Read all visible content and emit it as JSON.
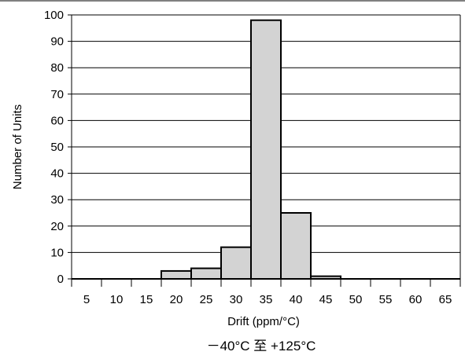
{
  "chart_data": {
    "type": "bar",
    "categories": [
      "5",
      "10",
      "15",
      "20",
      "25",
      "30",
      "35",
      "40",
      "45",
      "50",
      "55",
      "60",
      "65"
    ],
    "values": [
      0,
      0,
      0,
      3,
      4,
      12,
      98,
      25,
      1,
      0,
      0,
      0,
      0
    ],
    "xlabel": "Drift (ppm/°C)",
    "ylabel": "Number of Units",
    "ylim": [
      0,
      100
    ],
    "yticks": [
      0,
      10,
      20,
      30,
      40,
      50,
      60,
      70,
      80,
      90,
      100
    ],
    "grid": true,
    "bar_color": "#d3d3d3",
    "edge_color": "#000000",
    "caption": "－40°C 至 +125°C"
  }
}
